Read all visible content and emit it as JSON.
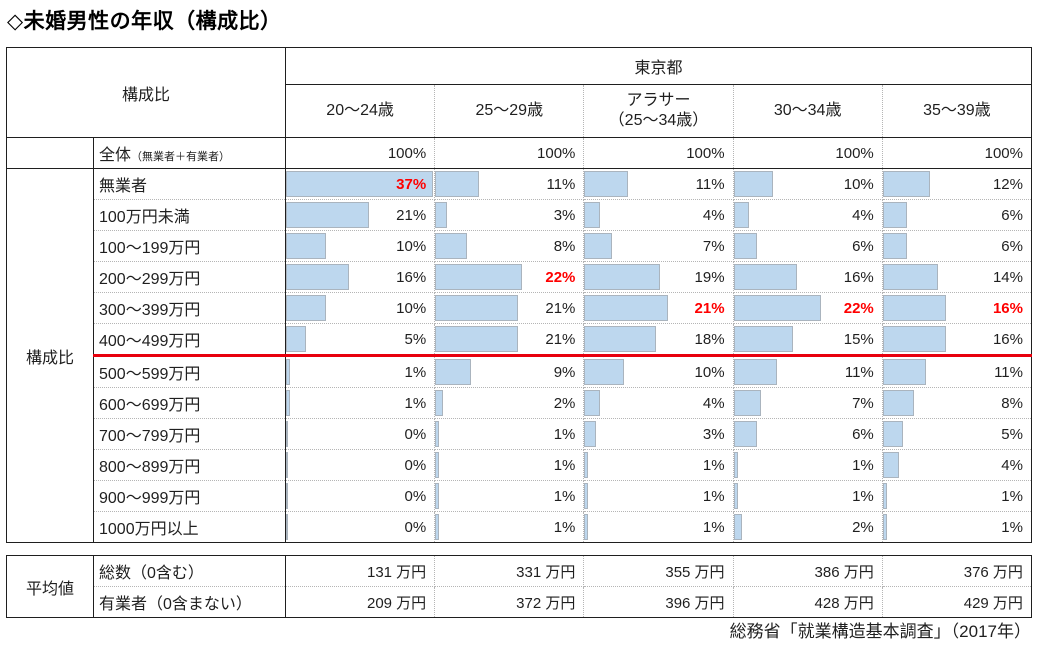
{
  "chart_data": {
    "type": "table",
    "title": "◇未婚男性の年収（構成比）",
    "corner_label": "構成比",
    "region_label": "東京都",
    "columns": [
      "20〜24歳",
      "25〜29歳",
      "アラサー（25〜34歳）",
      "30〜34歳",
      "35〜39歳"
    ],
    "columns_display": [
      [
        "20〜24歳"
      ],
      [
        "25〜29歳"
      ],
      [
        "アラサー",
        "（25〜34歳）"
      ],
      [
        "30〜34歳"
      ],
      [
        "35〜39歳"
      ]
    ],
    "unit": "%",
    "total_row": {
      "label_main": "全体",
      "label_sub": "（無業者＋有業者）",
      "values": [
        100,
        100,
        100,
        100,
        100
      ]
    },
    "group_label": "構成比",
    "composition_rows": [
      {
        "label": "無業者",
        "values": [
          37,
          11,
          11,
          10,
          12
        ]
      },
      {
        "label": "100万円未満",
        "values": [
          21,
          3,
          4,
          4,
          6
        ]
      },
      {
        "label": "100〜199万円",
        "values": [
          10,
          8,
          7,
          6,
          6
        ]
      },
      {
        "label": "200〜299万円",
        "values": [
          16,
          22,
          19,
          16,
          14
        ]
      },
      {
        "label": "300〜399万円",
        "values": [
          10,
          21,
          21,
          22,
          16
        ]
      },
      {
        "label": "400〜499万円",
        "values": [
          5,
          21,
          18,
          15,
          16
        ]
      },
      {
        "label": "500〜599万円",
        "values": [
          1,
          9,
          10,
          11,
          11
        ]
      },
      {
        "label": "600〜699万円",
        "values": [
          1,
          2,
          4,
          7,
          8
        ]
      },
      {
        "label": "700〜799万円",
        "values": [
          0,
          1,
          3,
          6,
          5
        ]
      },
      {
        "label": "800〜899万円",
        "values": [
          0,
          1,
          1,
          1,
          4
        ]
      },
      {
        "label": "900〜999万円",
        "values": [
          0,
          1,
          1,
          1,
          1
        ]
      },
      {
        "label": "1000万円以上",
        "values": [
          0,
          1,
          1,
          2,
          1
        ]
      }
    ],
    "bar_scale_max": 37,
    "highlighted_cells": [
      [
        0,
        0
      ],
      [
        3,
        1
      ],
      [
        4,
        2
      ],
      [
        4,
        3
      ],
      [
        4,
        4
      ]
    ],
    "red_divider_after_row_index": 5,
    "averages_group_label": "平均値",
    "averages_unit": "万円",
    "average_rows": [
      {
        "label": "総数（0含む）",
        "values": [
          131,
          331,
          355,
          386,
          376
        ]
      },
      {
        "label": "有業者（0含まない）",
        "values": [
          209,
          372,
          396,
          428,
          429
        ]
      }
    ],
    "source": "総務省「就業構造基本調査」（2017年）"
  },
  "colors": {
    "bar_fill": "#bdd7ee",
    "bar_border": "#aab4be",
    "highlight_text": "#ff0000",
    "red_divider": "#e8000d",
    "grid_dotted": "#b5b5b5",
    "border_solid": "#1f1f1f"
  }
}
